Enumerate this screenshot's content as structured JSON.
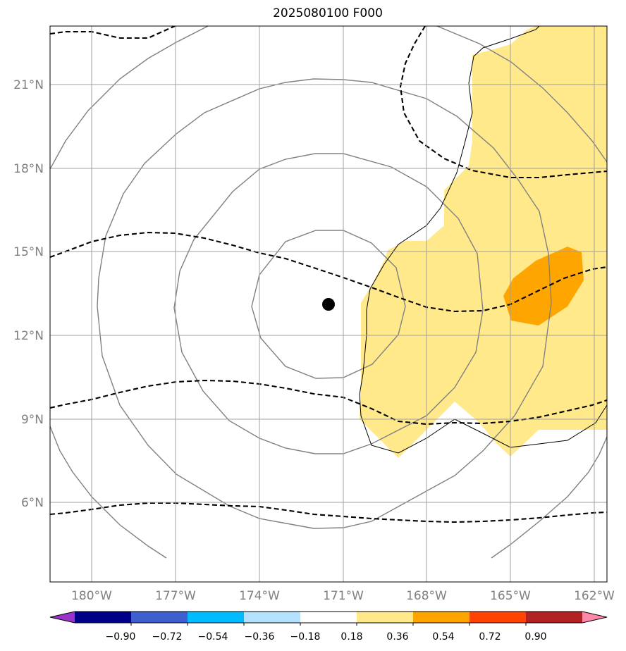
{
  "title": "2025080100 F000",
  "lat_labels": [
    "21°N",
    "18°N",
    "15°N",
    "12°N",
    "9°N",
    "6°N"
  ],
  "lon_labels": [
    "180°W",
    "177°W",
    "174°W",
    "171°W",
    "168°W",
    "165°W",
    "162°W"
  ],
  "colorbar": {
    "colors": [
      "#9933cc",
      "#000088",
      "#3f5fcf",
      "#00bbff",
      "#b3e2ff",
      "#ffffff",
      "#ffe98b",
      "#ffa500",
      "#ff4400",
      "#b22222",
      "#ff88a8"
    ],
    "tick_labels": [
      "−0.90",
      "−0.72",
      "−0.54",
      "−0.36",
      "−0.18",
      "0.18",
      "0.36",
      "0.54",
      "0.72",
      "0.90"
    ]
  },
  "center_marker": {
    "lat": 13.1,
    "lon": -171.5
  }
}
